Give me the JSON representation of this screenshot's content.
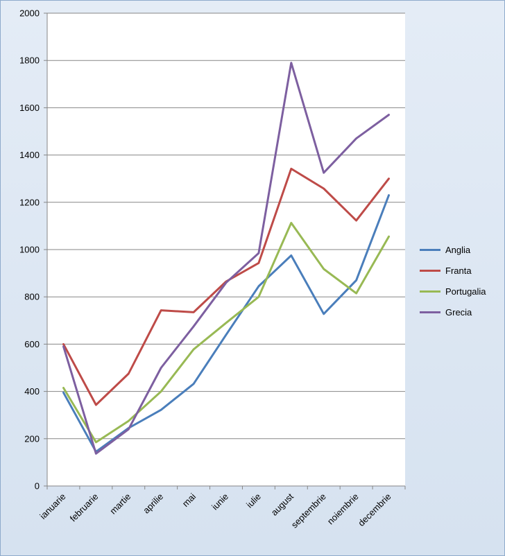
{
  "chart_data": {
    "type": "line",
    "categories": [
      "ianuarie",
      "februarie",
      "martie",
      "aprilie",
      "mai",
      "iunie",
      "iulie",
      "august",
      "septembrie",
      "noiembrie",
      "decembrie"
    ],
    "ylim": [
      0,
      2000
    ],
    "yticks": [
      0,
      200,
      400,
      600,
      800,
      1000,
      1200,
      1400,
      1600,
      1800,
      2000
    ],
    "grid": true,
    "legend_position": "right",
    "series": [
      {
        "name": "Anglia",
        "color": "#4a7ebb",
        "values": [
          395,
          145,
          245,
          322,
          432,
          640,
          845,
          975,
          728,
          870,
          1230
        ]
      },
      {
        "name": "Franta",
        "color": "#be4b48",
        "values": [
          600,
          343,
          475,
          743,
          735,
          865,
          943,
          1342,
          1258,
          1123,
          1300
        ]
      },
      {
        "name": "Portugalia",
        "color": "#98b954",
        "values": [
          415,
          185,
          275,
          400,
          578,
          690,
          800,
          1113,
          918,
          815,
          1055
        ]
      },
      {
        "name": "Grecia",
        "color": "#7d5fa0",
        "values": [
          590,
          137,
          240,
          500,
          675,
          860,
          985,
          1790,
          1325,
          1470,
          1570
        ]
      }
    ]
  }
}
